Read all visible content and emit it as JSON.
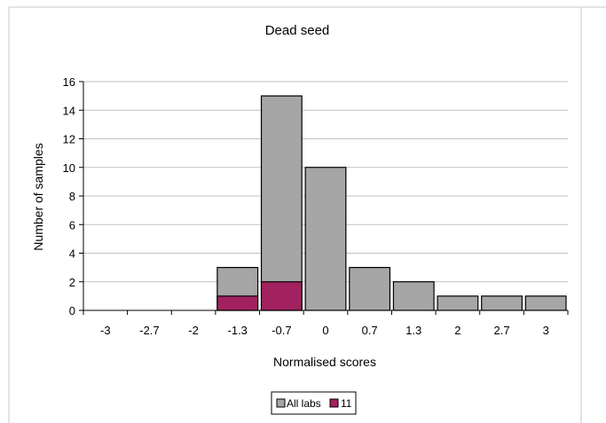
{
  "chart_data": {
    "type": "bar",
    "title": "Dead seed",
    "xlabel": "Normalised scores",
    "ylabel": "Number of samples",
    "categories": [
      "-3",
      "-2.7",
      "-2",
      "-1.3",
      "-0.7",
      "0",
      "0.7",
      "1.3",
      "2",
      "2.7",
      "3"
    ],
    "series": [
      {
        "name": "All labs",
        "values": [
          0,
          0,
          0,
          3,
          15,
          10,
          3,
          2,
          1,
          1,
          1
        ],
        "color": "#a6a6a6"
      },
      {
        "name": "11",
        "values": [
          0,
          0,
          0,
          1,
          2,
          0,
          0,
          0,
          0,
          0,
          0
        ],
        "color": "#a1225f"
      }
    ],
    "ylim": [
      0,
      16
    ],
    "yticks": [
      0,
      2,
      4,
      6,
      8,
      10,
      12,
      14,
      16
    ],
    "grid": true,
    "legend_position": "bottom",
    "plot_background": "#ffffff",
    "gridline_color": "#c0c0c0",
    "bar_outline_color": "#000000"
  }
}
